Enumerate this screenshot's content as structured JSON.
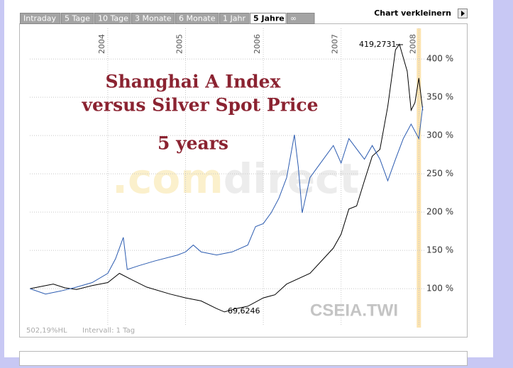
{
  "tabs": [
    "Intraday",
    "5 Tage",
    "10 Tage",
    "3 Monate",
    "6 Monate",
    "1 Jahr",
    "5 Jahre",
    "∞"
  ],
  "active_tab": 6,
  "button": "Chart verkleinern",
  "chart_data": {
    "type": "line",
    "title": [
      "Shanghai A Index",
      "versus Silver Spot Price",
      "5 years"
    ],
    "watermark": [
      ".com",
      "direct"
    ],
    "credit": "CSEIA.TWI",
    "footer": [
      "502,19%HL",
      "Intervall: 1 Tag"
    ],
    "annotations": [
      "419,2731",
      "69,6246"
    ],
    "xlim": [
      2002.87,
      2008.07
    ],
    "xticks": [
      2004,
      2005,
      2006,
      2007,
      2008
    ],
    "ylim": [
      51,
      440
    ],
    "yticks": [
      {
        "value": 100,
        "label": "100 %"
      },
      {
        "value": 150,
        "label": "150 %"
      },
      {
        "value": 200,
        "label": "200 %"
      },
      {
        "value": 250,
        "label": "250 %"
      },
      {
        "value": 300,
        "label": "300 %"
      },
      {
        "value": 350,
        "label": "350 %"
      },
      {
        "value": 400,
        "label": "400 %"
      }
    ],
    "grid": true,
    "series": [
      {
        "color": "#000000",
        "x": [
          2003.0,
          2003.15,
          2003.3,
          2003.45,
          2003.6,
          2003.8,
          2004.0,
          2004.15,
          2004.3,
          2004.5,
          2004.8,
          2005.0,
          2005.2,
          2005.4,
          2005.5,
          2005.65,
          2005.8,
          2006.0,
          2006.15,
          2006.3,
          2006.6,
          2006.9,
          2007.0,
          2007.1,
          2007.2,
          2007.3,
          2007.4,
          2007.5,
          2007.6,
          2007.7,
          2007.75,
          2007.85,
          2007.9,
          2007.95,
          2008.0,
          2008.05
        ],
        "values": [
          100,
          103,
          106,
          101,
          99,
          104,
          108,
          120,
          112,
          102,
          93,
          88,
          84,
          74,
          69.6246,
          74,
          77,
          88,
          92,
          106,
          120,
          153,
          171,
          204,
          208,
          241,
          273,
          282,
          338,
          412,
          419.2731,
          384,
          333,
          343,
          375,
          333
        ]
      },
      {
        "color": "#2b5bb0",
        "x": [
          2003.0,
          2003.2,
          2003.4,
          2003.6,
          2003.8,
          2004.0,
          2004.1,
          2004.2,
          2004.25,
          2004.4,
          2004.6,
          2004.9,
          2005.0,
          2005.1,
          2005.2,
          2005.4,
          2005.6,
          2005.8,
          2005.9,
          2006.0,
          2006.1,
          2006.2,
          2006.3,
          2006.4,
          2006.45,
          2006.5,
          2006.6,
          2006.7,
          2006.9,
          2007.0,
          2007.1,
          2007.3,
          2007.4,
          2007.5,
          2007.6,
          2007.7,
          2007.8,
          2007.9,
          2008.0,
          2008.05
        ],
        "values": [
          100,
          93,
          97,
          102,
          108,
          120,
          139,
          167,
          125,
          130,
          136,
          144,
          148,
          157,
          148,
          144,
          148,
          157,
          181,
          185,
          199,
          218,
          245,
          301,
          259,
          199,
          245,
          259,
          287,
          264,
          296,
          269,
          287,
          269,
          241,
          269,
          296,
          315,
          296,
          338
        ]
      }
    ]
  }
}
